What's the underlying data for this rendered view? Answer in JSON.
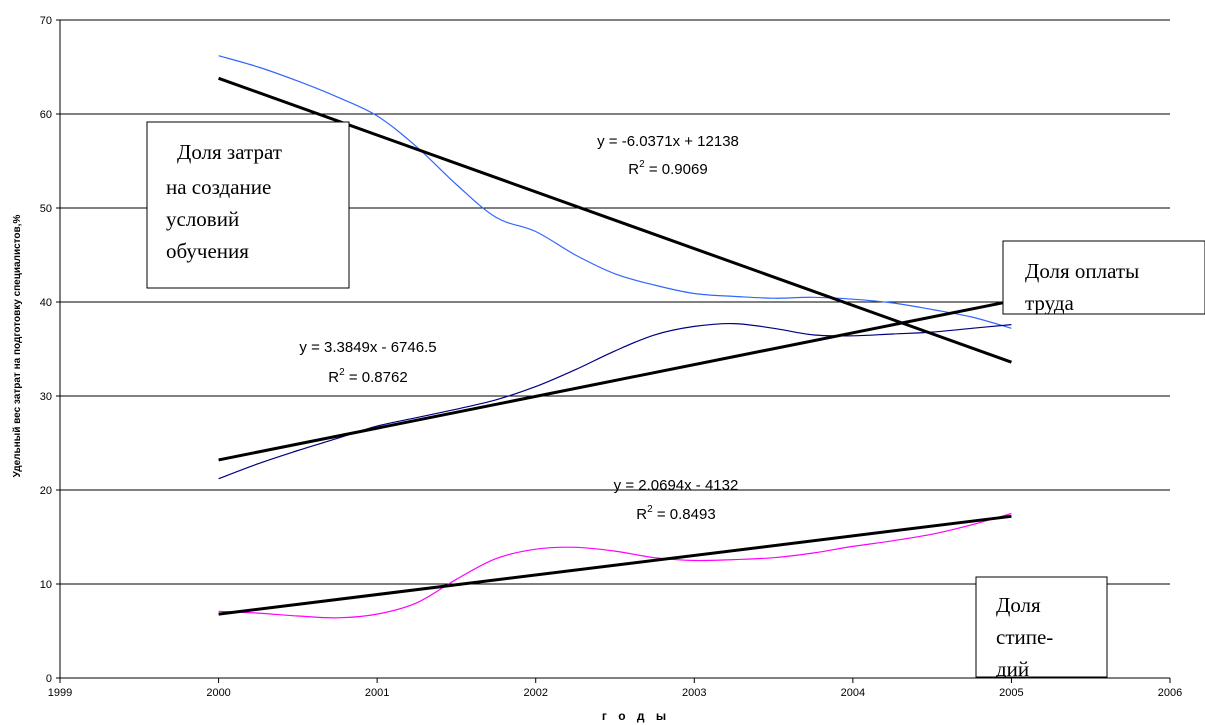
{
  "chart_data": {
    "type": "line",
    "title": "",
    "xlabel": "г о д ы",
    "ylabel": "Удельный вес затрат на  подготовку специалистов,%",
    "xlim": [
      1999,
      2006
    ],
    "ylim": [
      0,
      70
    ],
    "x_ticks": [
      "1999",
      "2000",
      "2001",
      "2002",
      "2003",
      "2004",
      "2005",
      "2006"
    ],
    "y_ticks": [
      "0",
      "10",
      "20",
      "30",
      "40",
      "50",
      "60",
      "70"
    ],
    "grid": "horizontal",
    "legend": "none",
    "series": [
      {
        "color": "#3366ff",
        "x": [
          2000,
          2000.25,
          2000.5,
          2000.75,
          2001,
          2001.25,
          2001.5,
          2001.75,
          2002,
          2002.25,
          2002.5,
          2002.75,
          2003,
          2003.25,
          2003.5,
          2003.75,
          2004,
          2004.25,
          2004.5,
          2004.75,
          2005
        ],
        "y": [
          66.2,
          65.0,
          63.5,
          61.8,
          59.8,
          56.5,
          52.5,
          49.0,
          47.5,
          45.0,
          43.0,
          41.8,
          40.9,
          40.6,
          40.4,
          40.5,
          40.3,
          39.9,
          39.2,
          38.4,
          37.2
        ]
      },
      {
        "color": "#000080",
        "x": [
          2000,
          2000.25,
          2000.5,
          2000.75,
          2001,
          2001.25,
          2001.5,
          2001.75,
          2002,
          2002.25,
          2002.5,
          2002.75,
          2003,
          2003.25,
          2003.5,
          2003.75,
          2004,
          2004.25,
          2004.5,
          2004.75,
          2005
        ],
        "y": [
          21.2,
          22.8,
          24.2,
          25.5,
          26.8,
          27.7,
          28.6,
          29.6,
          31.0,
          32.8,
          34.8,
          36.5,
          37.4,
          37.7,
          37.2,
          36.5,
          36.4,
          36.6,
          36.8,
          37.2,
          37.6
        ]
      },
      {
        "color": "#ff00ff",
        "x": [
          2000,
          2000.25,
          2000.5,
          2000.75,
          2001,
          2001.25,
          2001.5,
          2001.75,
          2002,
          2002.25,
          2002.5,
          2002.75,
          2003,
          2003.25,
          2003.5,
          2003.75,
          2004,
          2004.25,
          2004.5,
          2004.75,
          2005
        ],
        "y": [
          7.1,
          6.9,
          6.6,
          6.4,
          6.8,
          8.0,
          10.5,
          12.7,
          13.7,
          13.9,
          13.5,
          12.8,
          12.5,
          12.6,
          12.8,
          13.3,
          14.0,
          14.6,
          15.3,
          16.3,
          17.5
        ]
      }
    ],
    "trendlines": [
      {
        "color": "#000000",
        "x": [
          2000,
          2005
        ],
        "y": [
          63.8,
          33.6
        ],
        "equation": "y = -6.0371x + 12138",
        "r2_prefix": "R",
        "r2_exp": "2",
        "r2_value": " = 0.9069"
      },
      {
        "color": "#000000",
        "x": [
          2000,
          2005
        ],
        "y": [
          23.2,
          40.1
        ],
        "equation": "y = 3.3849x - 6746.5",
        "r2_prefix": "R",
        "r2_exp": "2",
        "r2_value": " = 0.8762"
      },
      {
        "color": "#000000",
        "x": [
          2000,
          2005
        ],
        "y": [
          6.8,
          17.2
        ],
        "equation": "y = 2.0694x - 4132",
        "r2_prefix": "R",
        "r2_exp": "2",
        "r2_value": " = 0.8493"
      }
    ],
    "annotations": [
      {
        "lines": [
          "Доля затрат",
          "на создание",
          "условий",
          "обучения"
        ]
      },
      {
        "lines": [
          "Доля оплаты",
          "труда"
        ]
      },
      {
        "lines": [
          "Доля",
          "стипе-",
          "дий"
        ]
      }
    ]
  }
}
